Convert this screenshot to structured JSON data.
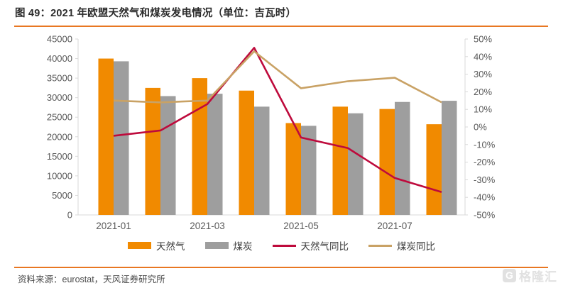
{
  "header": {
    "title": "图 49：2021 年欧盟天然气和煤炭发电情况（单位：吉瓦时）"
  },
  "footer": {
    "source": "资料来源：eurostat，天风证券研究所"
  },
  "watermark": {
    "logo_letter": "G",
    "text": "格隆汇"
  },
  "colors": {
    "accent_rule": "#e87722",
    "axis_line": "#d9d9d9",
    "axis_label": "#595959"
  },
  "chart_data": {
    "type": "bar+line combo",
    "title": "2021 年欧盟天然气和煤炭发电情况",
    "unit": "吉瓦时",
    "categories": [
      "2021-01",
      "2021-02",
      "2021-03",
      "2021-04",
      "2021-05",
      "2021-06",
      "2021-07",
      "2021-08"
    ],
    "x_tick_labels": [
      "2021-01",
      "2021-03",
      "2021-05",
      "2021-07"
    ],
    "left_axis": {
      "min": 0,
      "max": 45000,
      "step": 5000
    },
    "right_axis": {
      "min": -50,
      "max": 50,
      "step": 10,
      "suffix": "%"
    },
    "grid": false,
    "legend_position": "bottom",
    "series": [
      {
        "name": "天然气",
        "type": "bar",
        "axis": "left",
        "color": "#f18a00",
        "values": [
          40000,
          32500,
          35000,
          31800,
          23500,
          27700,
          27100,
          23200
        ]
      },
      {
        "name": "煤炭",
        "type": "bar",
        "axis": "left",
        "color": "#9e9e9e",
        "values": [
          39300,
          30400,
          31000,
          27700,
          22800,
          26000,
          28900,
          29200
        ]
      },
      {
        "name": "天然气同比",
        "type": "line",
        "axis": "right",
        "color": "#be0a3c",
        "values": [
          -5,
          -2,
          13,
          45,
          -6,
          -12,
          -29,
          -37
        ]
      },
      {
        "name": "煤炭同比",
        "type": "line",
        "axis": "right",
        "color": "#c9a265",
        "values": [
          15,
          14,
          15,
          43,
          22,
          26,
          28,
          14
        ]
      }
    ]
  }
}
